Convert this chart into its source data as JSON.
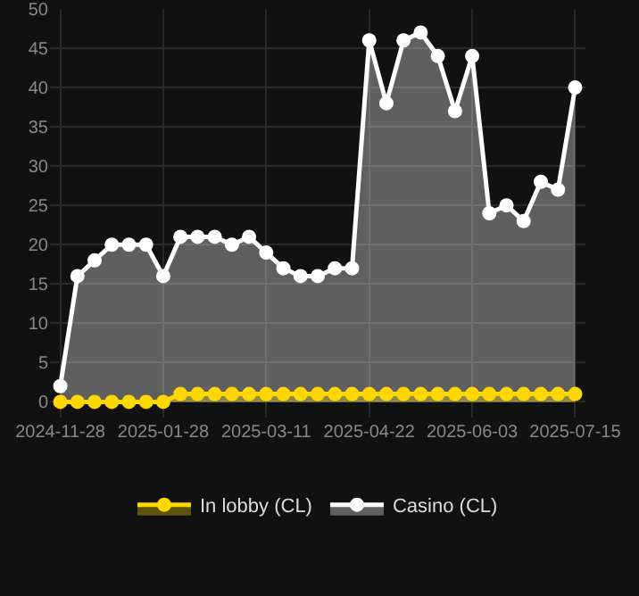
{
  "chart_data": {
    "type": "area",
    "categories": [
      "2024-11-28",
      null,
      null,
      null,
      null,
      null,
      "2025-01-28",
      null,
      null,
      null,
      null,
      null,
      "2025-03-11",
      null,
      null,
      null,
      null,
      null,
      "2025-04-22",
      null,
      null,
      null,
      null,
      null,
      "2025-06-03",
      null,
      null,
      null,
      null,
      null,
      "2025-07-15"
    ],
    "series": [
      {
        "name": "In lobby (CL)",
        "color": "#ffd700",
        "values": [
          0,
          0,
          0,
          0,
          0,
          0,
          0,
          1,
          1,
          1,
          1,
          1,
          1,
          1,
          1,
          1,
          1,
          1,
          1,
          1,
          1,
          1,
          1,
          1,
          1,
          1,
          1,
          1,
          1,
          1,
          1
        ]
      },
      {
        "name": "Casino (CL)",
        "color": "#ffffff",
        "values": [
          2,
          16,
          18,
          20,
          20,
          20,
          16,
          21,
          21,
          21,
          20,
          21,
          19,
          17,
          16,
          16,
          17,
          17,
          46,
          38,
          46,
          47,
          44,
          37,
          44,
          24,
          25,
          23,
          28,
          27,
          40
        ]
      }
    ],
    "ylim": [
      -2,
      50
    ],
    "yticks": [
      0,
      5,
      10,
      15,
      20,
      25,
      30,
      35,
      40,
      45,
      50
    ],
    "grid": true,
    "legend": "bottom",
    "marker": "circle",
    "line_style": "solid"
  }
}
